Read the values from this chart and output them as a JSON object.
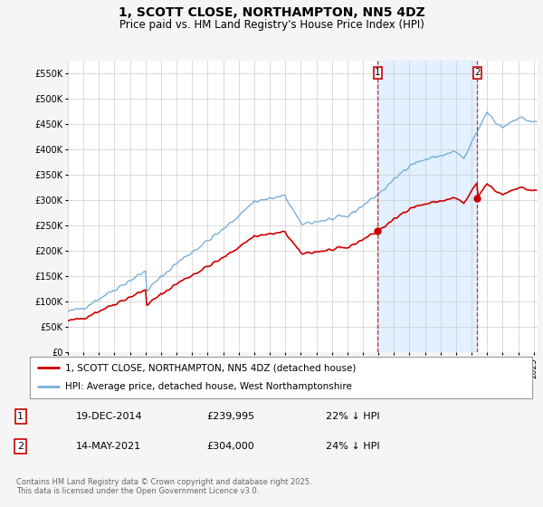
{
  "title": "1, SCOTT CLOSE, NORTHAMPTON, NN5 4DZ",
  "subtitle": "Price paid vs. HM Land Registry's House Price Index (HPI)",
  "title_fontsize": 10,
  "subtitle_fontsize": 8.5,
  "ylabel_ticks": [
    "£0",
    "£50K",
    "£100K",
    "£150K",
    "£200K",
    "£250K",
    "£300K",
    "£350K",
    "£400K",
    "£450K",
    "£500K",
    "£550K"
  ],
  "ytick_values": [
    0,
    50000,
    100000,
    150000,
    200000,
    250000,
    300000,
    350000,
    400000,
    450000,
    500000,
    550000
  ],
  "ylim": [
    0,
    575000
  ],
  "hpi_color": "#7bafd4",
  "price_color": "#cc0000",
  "shaded_color": "#ddeeff",
  "transaction1_year": 2014.96,
  "transaction1_price": 239995,
  "transaction1_date": "19-DEC-2014",
  "transaction1_label": "22% ↓ HPI",
  "transaction2_year": 2021.37,
  "transaction2_price": 304000,
  "transaction2_date": "14-MAY-2021",
  "transaction2_label": "24% ↓ HPI",
  "legend_line1": "1, SCOTT CLOSE, NORTHAMPTON, NN5 4DZ (detached house)",
  "legend_line2": "HPI: Average price, detached house, West Northamptonshire",
  "footer": "Contains HM Land Registry data © Crown copyright and database right 2025.\nThis data is licensed under the Open Government Licence v3.0.",
  "background_color": "#f5f5f5",
  "plot_bg_color": "#ffffff",
  "grid_color": "#cccccc"
}
